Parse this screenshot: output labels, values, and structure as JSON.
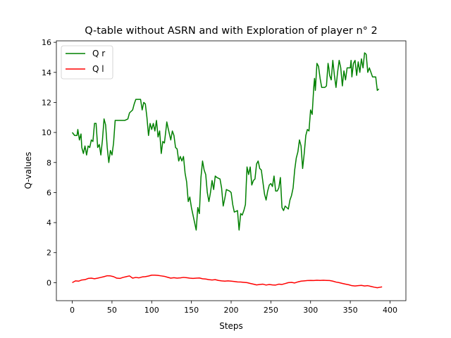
{
  "chart_data": {
    "type": "line",
    "title": "Q-table without ASRN and with Exploration of player n° 2",
    "xlabel": "Steps",
    "ylabel": "Q-values",
    "xlim": [
      -20,
      420
    ],
    "ylim": [
      -1.2,
      16.1
    ],
    "xticks": [
      0,
      50,
      100,
      150,
      200,
      250,
      300,
      350,
      400
    ],
    "yticks": [
      0,
      2,
      4,
      6,
      8,
      10,
      12,
      14,
      16
    ],
    "grid": false,
    "legend_position": "top-left",
    "series": [
      {
        "name": "Q r",
        "color": "#008000",
        "points": [
          [
            0,
            10.0
          ],
          [
            3,
            9.8
          ],
          [
            6,
            9.8
          ],
          [
            7,
            10.2
          ],
          [
            9,
            9.5
          ],
          [
            11,
            9.9
          ],
          [
            12,
            9.0
          ],
          [
            14,
            8.6
          ],
          [
            16,
            9.1
          ],
          [
            18,
            8.5
          ],
          [
            20,
            9.1
          ],
          [
            22,
            9.0
          ],
          [
            24,
            9.5
          ],
          [
            26,
            9.4
          ],
          [
            28,
            10.6
          ],
          [
            30,
            10.6
          ],
          [
            32,
            9.0
          ],
          [
            34,
            9.2
          ],
          [
            36,
            8.5
          ],
          [
            38,
            9.5
          ],
          [
            40,
            10.9
          ],
          [
            42,
            10.5
          ],
          [
            44,
            9.0
          ],
          [
            46,
            8.0
          ],
          [
            48,
            8.8
          ],
          [
            50,
            8.5
          ],
          [
            52,
            9.3
          ],
          [
            54,
            10.8
          ],
          [
            60,
            10.8
          ],
          [
            66,
            10.8
          ],
          [
            70,
            10.9
          ],
          [
            72,
            11.3
          ],
          [
            76,
            11.5
          ],
          [
            78,
            11.9
          ],
          [
            80,
            12.2
          ],
          [
            86,
            12.2
          ],
          [
            88,
            11.5
          ],
          [
            90,
            12.0
          ],
          [
            92,
            11.9
          ],
          [
            94,
            11.0
          ],
          [
            96,
            9.8
          ],
          [
            98,
            10.6
          ],
          [
            100,
            10.2
          ],
          [
            102,
            10.6
          ],
          [
            104,
            10.1
          ],
          [
            106,
            10.8
          ],
          [
            108,
            9.7
          ],
          [
            110,
            10.1
          ],
          [
            112,
            8.6
          ],
          [
            114,
            9.4
          ],
          [
            116,
            9.3
          ],
          [
            118,
            10.2
          ],
          [
            119,
            10.7
          ],
          [
            121,
            10.2
          ],
          [
            124,
            9.5
          ],
          [
            126,
            10.1
          ],
          [
            128,
            9.8
          ],
          [
            130,
            9.0
          ],
          [
            132,
            8.9
          ],
          [
            134,
            8.1
          ],
          [
            136,
            8.4
          ],
          [
            138,
            8.1
          ],
          [
            140,
            8.4
          ],
          [
            142,
            7.3
          ],
          [
            144,
            6.7
          ],
          [
            146,
            5.4
          ],
          [
            148,
            5.7
          ],
          [
            150,
            5.0
          ],
          [
            152,
            4.5
          ],
          [
            154,
            4.0
          ],
          [
            156,
            3.5
          ],
          [
            158,
            5.0
          ],
          [
            160,
            4.6
          ],
          [
            162,
            7.0
          ],
          [
            164,
            8.1
          ],
          [
            166,
            7.5
          ],
          [
            168,
            7.2
          ],
          [
            170,
            6.0
          ],
          [
            172,
            5.4
          ],
          [
            174,
            6.0
          ],
          [
            176,
            6.8
          ],
          [
            178,
            6.2
          ],
          [
            180,
            7.1
          ],
          [
            182,
            7.0
          ],
          [
            186,
            6.9
          ],
          [
            188,
            6.3
          ],
          [
            190,
            5.1
          ],
          [
            192,
            5.6
          ],
          [
            194,
            6.2
          ],
          [
            198,
            6.1
          ],
          [
            200,
            6.0
          ],
          [
            202,
            5.2
          ],
          [
            204,
            4.7
          ],
          [
            208,
            4.8
          ],
          [
            210,
            3.5
          ],
          [
            212,
            4.6
          ],
          [
            214,
            4.5
          ],
          [
            216,
            4.8
          ],
          [
            218,
            5.2
          ],
          [
            219,
            6.5
          ],
          [
            220,
            7.7
          ],
          [
            222,
            7.2
          ],
          [
            224,
            7.7
          ],
          [
            226,
            6.5
          ],
          [
            228,
            6.8
          ],
          [
            230,
            6.9
          ],
          [
            232,
            7.9
          ],
          [
            234,
            8.1
          ],
          [
            236,
            7.6
          ],
          [
            238,
            7.5
          ],
          [
            240,
            6.7
          ],
          [
            242,
            5.9
          ],
          [
            244,
            5.5
          ],
          [
            246,
            6.1
          ],
          [
            248,
            6.5
          ],
          [
            250,
            6.6
          ],
          [
            252,
            6.4
          ],
          [
            254,
            7.1
          ],
          [
            256,
            6.1
          ],
          [
            258,
            6.1
          ],
          [
            260,
            6.3
          ],
          [
            262,
            7.0
          ],
          [
            264,
            5.0
          ],
          [
            266,
            4.8
          ],
          [
            268,
            5.1
          ],
          [
            270,
            5.0
          ],
          [
            272,
            4.9
          ],
          [
            274,
            5.5
          ],
          [
            276,
            5.8
          ],
          [
            278,
            6.3
          ],
          [
            280,
            7.5
          ],
          [
            282,
            8.3
          ],
          [
            284,
            8.7
          ],
          [
            286,
            9.5
          ],
          [
            288,
            9.1
          ],
          [
            290,
            7.6
          ],
          [
            292,
            8.6
          ],
          [
            294,
            9.8
          ],
          [
            296,
            10.2
          ],
          [
            298,
            10.1
          ],
          [
            300,
            11.5
          ],
          [
            302,
            11.2
          ],
          [
            304,
            13.0
          ],
          [
            305,
            13.6
          ],
          [
            306,
            12.8
          ],
          [
            308,
            14.6
          ],
          [
            310,
            14.4
          ],
          [
            312,
            13.6
          ],
          [
            314,
            13.0
          ],
          [
            318,
            13.0
          ],
          [
            320,
            13.1
          ],
          [
            322,
            14.6
          ],
          [
            323,
            14.3
          ],
          [
            324,
            13.8
          ],
          [
            326,
            13.5
          ],
          [
            328,
            14.8
          ],
          [
            330,
            13.8
          ],
          [
            332,
            13.0
          ],
          [
            334,
            14.0
          ],
          [
            336,
            14.8
          ],
          [
            338,
            14.3
          ],
          [
            340,
            13.1
          ],
          [
            342,
            14.1
          ],
          [
            344,
            13.5
          ],
          [
            346,
            14.3
          ],
          [
            348,
            14.3
          ],
          [
            350,
            14.3
          ],
          [
            351,
            14.8
          ],
          [
            352,
            13.7
          ],
          [
            354,
            14.6
          ],
          [
            356,
            14.8
          ],
          [
            358,
            13.8
          ],
          [
            360,
            14.7
          ],
          [
            362,
            14.0
          ],
          [
            364,
            14.9
          ],
          [
            366,
            14.3
          ],
          [
            368,
            15.3
          ],
          [
            370,
            15.2
          ],
          [
            372,
            14.0
          ],
          [
            374,
            14.3
          ],
          [
            376,
            14.0
          ],
          [
            378,
            13.7
          ],
          [
            382,
            13.7
          ],
          [
            384,
            12.8
          ],
          [
            386,
            12.9
          ]
        ]
      },
      {
        "name": "Q l",
        "color": "#ff0000",
        "points": [
          [
            0,
            0.0
          ],
          [
            4,
            0.12
          ],
          [
            8,
            0.1
          ],
          [
            12,
            0.18
          ],
          [
            16,
            0.2
          ],
          [
            20,
            0.28
          ],
          [
            24,
            0.3
          ],
          [
            28,
            0.26
          ],
          [
            32,
            0.3
          ],
          [
            36,
            0.35
          ],
          [
            40,
            0.4
          ],
          [
            44,
            0.46
          ],
          [
            48,
            0.45
          ],
          [
            52,
            0.4
          ],
          [
            56,
            0.3
          ],
          [
            60,
            0.28
          ],
          [
            64,
            0.35
          ],
          [
            68,
            0.4
          ],
          [
            72,
            0.45
          ],
          [
            76,
            0.3
          ],
          [
            80,
            0.35
          ],
          [
            84,
            0.32
          ],
          [
            88,
            0.38
          ],
          [
            92,
            0.4
          ],
          [
            96,
            0.44
          ],
          [
            100,
            0.5
          ],
          [
            104,
            0.5
          ],
          [
            108,
            0.48
          ],
          [
            112,
            0.45
          ],
          [
            116,
            0.42
          ],
          [
            120,
            0.36
          ],
          [
            124,
            0.3
          ],
          [
            128,
            0.33
          ],
          [
            132,
            0.3
          ],
          [
            136,
            0.32
          ],
          [
            140,
            0.35
          ],
          [
            144,
            0.33
          ],
          [
            148,
            0.3
          ],
          [
            152,
            0.28
          ],
          [
            156,
            0.3
          ],
          [
            160,
            0.31
          ],
          [
            164,
            0.26
          ],
          [
            168,
            0.24
          ],
          [
            172,
            0.2
          ],
          [
            176,
            0.18
          ],
          [
            180,
            0.2
          ],
          [
            184,
            0.15
          ],
          [
            188,
            0.12
          ],
          [
            192,
            0.1
          ],
          [
            196,
            0.12
          ],
          [
            200,
            0.1
          ],
          [
            204,
            0.08
          ],
          [
            208,
            0.05
          ],
          [
            212,
            0.04
          ],
          [
            216,
            0.02
          ],
          [
            220,
            0.0
          ],
          [
            224,
            -0.05
          ],
          [
            228,
            -0.1
          ],
          [
            232,
            -0.15
          ],
          [
            236,
            -0.12
          ],
          [
            240,
            -0.1
          ],
          [
            244,
            -0.16
          ],
          [
            248,
            -0.12
          ],
          [
            252,
            -0.15
          ],
          [
            256,
            -0.16
          ],
          [
            260,
            -0.1
          ],
          [
            264,
            -0.12
          ],
          [
            268,
            -0.06
          ],
          [
            272,
            0.0
          ],
          [
            276,
            0.02
          ],
          [
            280,
            -0.02
          ],
          [
            284,
            0.05
          ],
          [
            288,
            0.1
          ],
          [
            292,
            0.12
          ],
          [
            296,
            0.14
          ],
          [
            300,
            0.15
          ],
          [
            304,
            0.14
          ],
          [
            308,
            0.16
          ],
          [
            312,
            0.15
          ],
          [
            316,
            0.16
          ],
          [
            320,
            0.15
          ],
          [
            324,
            0.14
          ],
          [
            328,
            0.1
          ],
          [
            332,
            0.04
          ],
          [
            336,
            0.0
          ],
          [
            340,
            -0.05
          ],
          [
            344,
            -0.1
          ],
          [
            348,
            -0.14
          ],
          [
            352,
            -0.2
          ],
          [
            356,
            -0.22
          ],
          [
            360,
            -0.2
          ],
          [
            364,
            -0.18
          ],
          [
            368,
            -0.22
          ],
          [
            372,
            -0.2
          ],
          [
            376,
            -0.25
          ],
          [
            380,
            -0.3
          ],
          [
            384,
            -0.34
          ],
          [
            388,
            -0.3
          ],
          [
            390,
            -0.28
          ]
        ]
      }
    ]
  }
}
